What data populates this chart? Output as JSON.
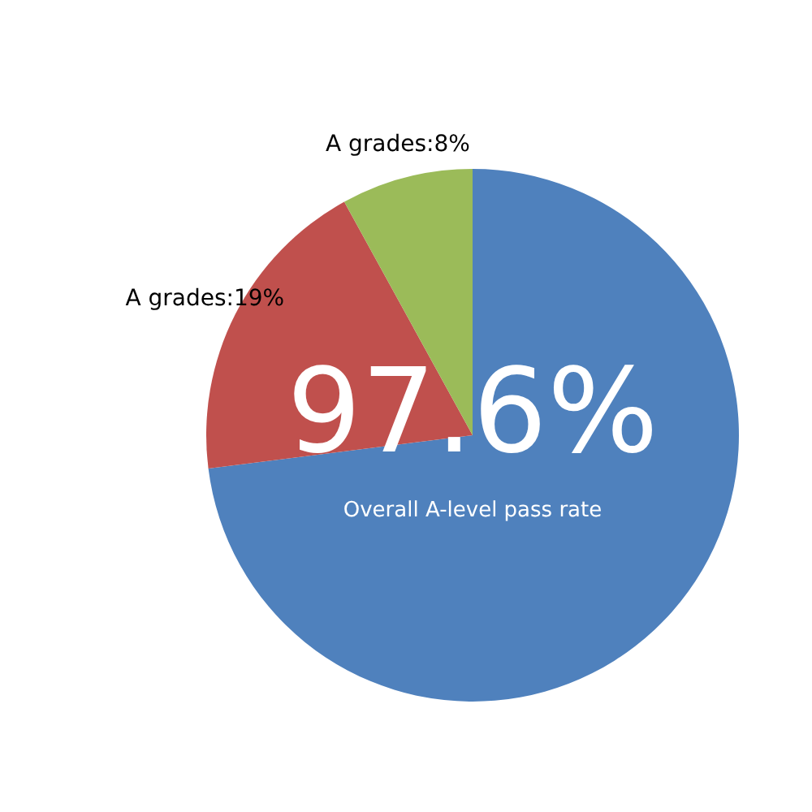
{
  "chart_data": {
    "type": "pie",
    "categories": [
      null,
      "A grades:19%",
      "A grades:8%"
    ],
    "values": [
      73,
      19,
      8
    ],
    "colors": [
      "#4f81bd",
      "#c0504d",
      "#9bbb59"
    ],
    "annotations": [
      "97.6%",
      "Overall A-level pass rate"
    ],
    "legend": false
  }
}
